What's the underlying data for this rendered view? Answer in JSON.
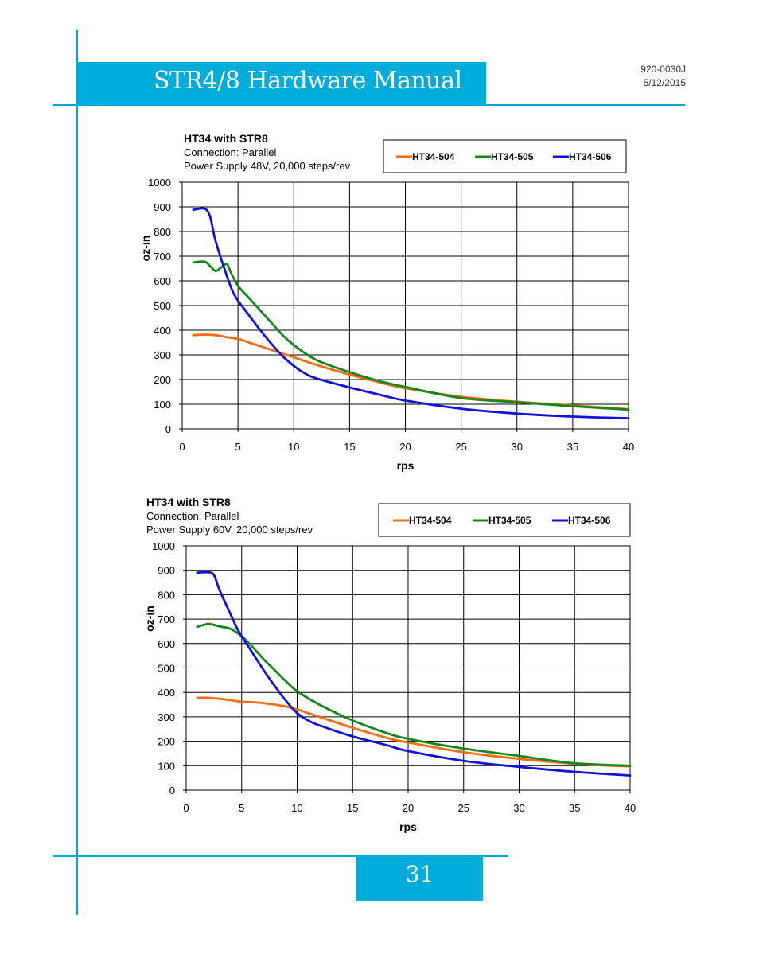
{
  "header": {
    "title": "STR4/8 Hardware Manual",
    "doc_number": "920-0030J",
    "doc_date": "5/12/2015"
  },
  "footer": {
    "page_number": "31"
  },
  "colors": {
    "accent": "#00acd9",
    "HT34-504": "#f26b0f",
    "HT34-505": "#12871b",
    "HT34-506": "#1010e0"
  },
  "chart_data": [
    {
      "type": "line",
      "title": "HT34 with STR8",
      "subtitle": [
        "Connection: Parallel",
        "Power Supply 48V, 20,000 steps/rev"
      ],
      "xlabel": "rps",
      "ylabel": "oz-in",
      "xlim": [
        0,
        40
      ],
      "ylim": [
        0,
        1000
      ],
      "xticks": [
        "0",
        "5",
        "10",
        "15",
        "20",
        "25",
        "30",
        "35",
        "40"
      ],
      "yticks": [
        "0",
        "100",
        "200",
        "300",
        "400",
        "500",
        "600",
        "700",
        "800",
        "900",
        "1000"
      ],
      "grid": true,
      "legend": "top-right",
      "series": [
        {
          "name": "HT34-504",
          "x": [
            1,
            2,
            3,
            4,
            5,
            6,
            7,
            8,
            9,
            10,
            12,
            15,
            18,
            20,
            25,
            30,
            35,
            40
          ],
          "values": [
            380,
            382,
            380,
            372,
            365,
            350,
            335,
            320,
            305,
            290,
            260,
            220,
            185,
            165,
            130,
            110,
            95,
            80
          ]
        },
        {
          "name": "HT34-505",
          "x": [
            1,
            2,
            2.5,
            3,
            3.5,
            4,
            4.3,
            5,
            6,
            7,
            8,
            9,
            10,
            12,
            15,
            18,
            20,
            25,
            30,
            35,
            40
          ],
          "values": [
            675,
            678,
            660,
            640,
            655,
            668,
            640,
            580,
            530,
            480,
            430,
            380,
            340,
            280,
            230,
            190,
            170,
            125,
            108,
            92,
            78
          ]
        },
        {
          "name": "HT34-506",
          "x": [
            1,
            2,
            2.5,
            3,
            4,
            4.5,
            5,
            6,
            7,
            8,
            9,
            10,
            11,
            12,
            15,
            18,
            20,
            25,
            30,
            35,
            40
          ],
          "values": [
            888,
            893,
            860,
            760,
            620,
            560,
            520,
            460,
            400,
            345,
            295,
            255,
            225,
            205,
            168,
            135,
            115,
            82,
            62,
            50,
            43
          ]
        }
      ]
    },
    {
      "type": "line",
      "title": "HT34 with STR8",
      "subtitle": [
        "Connection: Parallel",
        "Power Supply 60V,  20,000 steps/rev"
      ],
      "xlabel": "rps",
      "ylabel": "oz-in",
      "xlim": [
        0,
        40
      ],
      "ylim": [
        0,
        1000
      ],
      "xticks": [
        "0",
        "5",
        "10",
        "15",
        "20",
        "25",
        "30",
        "35",
        "40"
      ],
      "yticks": [
        "0",
        "100",
        "200",
        "300",
        "400",
        "500",
        "600",
        "700",
        "800",
        "900",
        "1000"
      ],
      "grid": true,
      "legend": "top-right",
      "series": [
        {
          "name": "HT34-504",
          "x": [
            1,
            2,
            3,
            4,
            5,
            6,
            7,
            8,
            9,
            10,
            12,
            15,
            18,
            20,
            25,
            30,
            35,
            40
          ],
          "values": [
            378,
            378,
            374,
            368,
            362,
            360,
            356,
            350,
            342,
            330,
            300,
            255,
            215,
            195,
            155,
            128,
            108,
            97
          ]
        },
        {
          "name": "HT34-505",
          "x": [
            1,
            2,
            3,
            4,
            5,
            6,
            7,
            8,
            9,
            10,
            12,
            15,
            18,
            20,
            25,
            30,
            35,
            40
          ],
          "values": [
            668,
            680,
            670,
            660,
            630,
            585,
            535,
            490,
            445,
            405,
            350,
            285,
            235,
            210,
            170,
            140,
            110,
            100
          ]
        },
        {
          "name": "HT34-506",
          "x": [
            1,
            2,
            2.5,
            3,
            4,
            4.5,
            5,
            6,
            7,
            8,
            9,
            10,
            11,
            12,
            15,
            18,
            20,
            25,
            30,
            35,
            40
          ],
          "values": [
            890,
            892,
            880,
            820,
            720,
            670,
            630,
            560,
            490,
            425,
            365,
            315,
            285,
            265,
            220,
            185,
            160,
            120,
            95,
            75,
            60
          ]
        }
      ]
    }
  ]
}
